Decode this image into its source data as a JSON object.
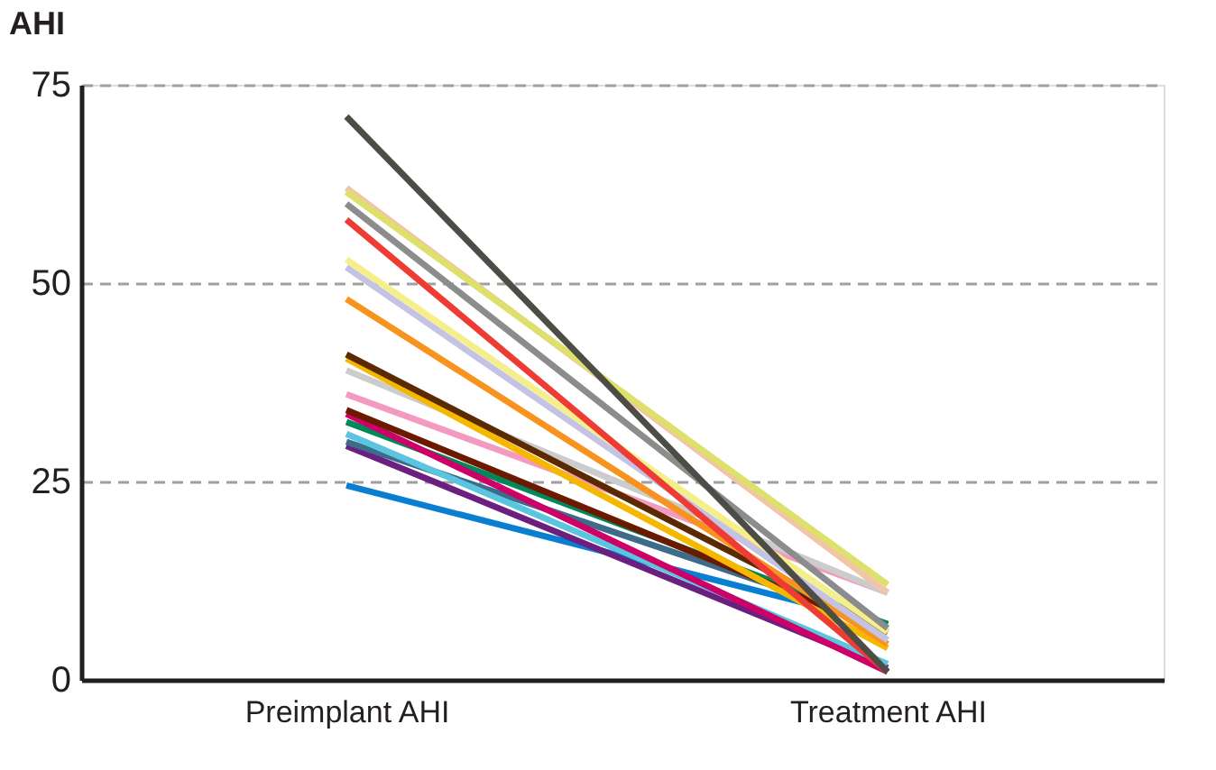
{
  "chart_data": {
    "type": "line",
    "ylabel": "AHI",
    "categories": [
      "Preimplant AHI",
      "Treatment AHI"
    ],
    "ylim": [
      0,
      75
    ],
    "yticks": [
      0,
      25,
      50,
      75
    ],
    "grid": "y",
    "legend": false,
    "marker": "none",
    "line_style": "solid",
    "series": [
      {
        "color": "#0a7fd1",
        "values": [
          24.5,
          7
        ]
      },
      {
        "color": "#6b2080",
        "values": [
          29.5,
          1.5
        ]
      },
      {
        "color": "#3d6b8a",
        "values": [
          30,
          7
        ]
      },
      {
        "color": "#5bc5e0",
        "values": [
          31,
          2
        ]
      },
      {
        "color": "#00875a",
        "values": [
          32.5,
          7
        ]
      },
      {
        "color": "#cc0066",
        "values": [
          33.5,
          1
        ]
      },
      {
        "color": "#6b1a00",
        "values": [
          34,
          6
        ]
      },
      {
        "color": "#f49ac1",
        "values": [
          36,
          11
        ]
      },
      {
        "color": "#cccccc",
        "values": [
          39,
          11
        ]
      },
      {
        "color": "#f5b800",
        "values": [
          40.5,
          4
        ]
      },
      {
        "color": "#5c2a00",
        "values": [
          41,
          6
        ]
      },
      {
        "color": "#f7931e",
        "values": [
          48,
          4.5
        ]
      },
      {
        "color": "#c5c3e3",
        "values": [
          52,
          5
        ]
      },
      {
        "color": "#f5ef8a",
        "values": [
          53,
          6
        ]
      },
      {
        "color": "#ee3b33",
        "values": [
          58,
          1
        ]
      },
      {
        "color": "#8c8c8c",
        "values": [
          60,
          6.5
        ]
      },
      {
        "color": "#f2c4a8",
        "values": [
          62,
          11
        ]
      },
      {
        "color": "#dde06a",
        "values": [
          61.5,
          12
        ]
      },
      {
        "color": "#4d4d45",
        "values": [
          71,
          1
        ]
      }
    ]
  }
}
